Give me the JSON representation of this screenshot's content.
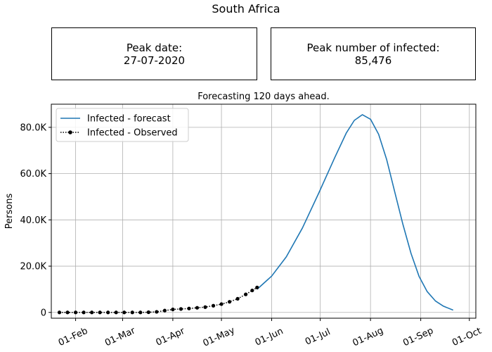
{
  "page": {
    "title": "South Africa"
  },
  "stats": {
    "peak_date_label": "Peak date:",
    "peak_date_value": "27-07-2020",
    "peak_infected_label": "Peak number of infected:",
    "peak_infected_value": "85,476"
  },
  "chart_data": {
    "type": "line",
    "title": "Forecasting 120 days ahead.",
    "xlabel": "",
    "ylabel": "Persons",
    "x_axis": "date",
    "xlim": [
      "2020-01-17",
      "2020-10-05"
    ],
    "ylim": [
      -2500,
      90000
    ],
    "x_ticks": [
      {
        "date": "2020-02-01",
        "label": "01-Feb"
      },
      {
        "date": "2020-03-01",
        "label": "01-Mar"
      },
      {
        "date": "2020-04-01",
        "label": "01-Apr"
      },
      {
        "date": "2020-05-01",
        "label": "01-May"
      },
      {
        "date": "2020-06-01",
        "label": "01-Jun"
      },
      {
        "date": "2020-07-01",
        "label": "01-Jul"
      },
      {
        "date": "2020-08-01",
        "label": "01-Aug"
      },
      {
        "date": "2020-09-01",
        "label": "01-Sep"
      },
      {
        "date": "2020-10-01",
        "label": "01-Oct"
      }
    ],
    "y_ticks": [
      {
        "value": 0,
        "label": "0"
      },
      {
        "value": 20000,
        "label": "20.0K"
      },
      {
        "value": 40000,
        "label": "40.0K"
      },
      {
        "value": 60000,
        "label": "60.0K"
      },
      {
        "value": 80000,
        "label": "80.0K"
      }
    ],
    "grid": true,
    "legend_position": "top-left",
    "series": [
      {
        "name": "Infected - forecast",
        "color": "#1f77b4",
        "style": "solid",
        "points": [
          [
            "2020-05-23",
            10000
          ],
          [
            "2020-06-01",
            15700
          ],
          [
            "2020-06-10",
            24000
          ],
          [
            "2020-06-20",
            36500
          ],
          [
            "2020-06-30",
            51500
          ],
          [
            "2020-07-10",
            67000
          ],
          [
            "2020-07-17",
            77500
          ],
          [
            "2020-07-22",
            83000
          ],
          [
            "2020-07-27",
            85476
          ],
          [
            "2020-08-01",
            83500
          ],
          [
            "2020-08-06",
            77000
          ],
          [
            "2020-08-11",
            66000
          ],
          [
            "2020-08-16",
            52000
          ],
          [
            "2020-08-21",
            38000
          ],
          [
            "2020-08-26",
            25500
          ],
          [
            "2020-08-31",
            15500
          ],
          [
            "2020-09-05",
            9000
          ],
          [
            "2020-09-10",
            5000
          ],
          [
            "2020-09-15",
            2700
          ],
          [
            "2020-09-21",
            1000
          ]
        ]
      },
      {
        "name": "Infected - Observed",
        "color": "#000000",
        "style": "dotted-markers",
        "points": [
          [
            "2020-01-22",
            0
          ],
          [
            "2020-01-27",
            0
          ],
          [
            "2020-02-01",
            0
          ],
          [
            "2020-02-06",
            0
          ],
          [
            "2020-02-11",
            0
          ],
          [
            "2020-02-16",
            0
          ],
          [
            "2020-02-21",
            0
          ],
          [
            "2020-02-26",
            0
          ],
          [
            "2020-03-02",
            0
          ],
          [
            "2020-03-07",
            0
          ],
          [
            "2020-03-12",
            0
          ],
          [
            "2020-03-17",
            80
          ],
          [
            "2020-03-22",
            250
          ],
          [
            "2020-03-27",
            800
          ],
          [
            "2020-04-01",
            1300
          ],
          [
            "2020-04-06",
            1500
          ],
          [
            "2020-04-11",
            1700
          ],
          [
            "2020-04-16",
            2000
          ],
          [
            "2020-04-21",
            2300
          ],
          [
            "2020-04-26",
            2900
          ],
          [
            "2020-05-01",
            3600
          ],
          [
            "2020-05-06",
            4600
          ],
          [
            "2020-05-11",
            5900
          ],
          [
            "2020-05-16",
            7800
          ],
          [
            "2020-05-20",
            9500
          ],
          [
            "2020-05-23",
            10800
          ]
        ]
      }
    ]
  }
}
